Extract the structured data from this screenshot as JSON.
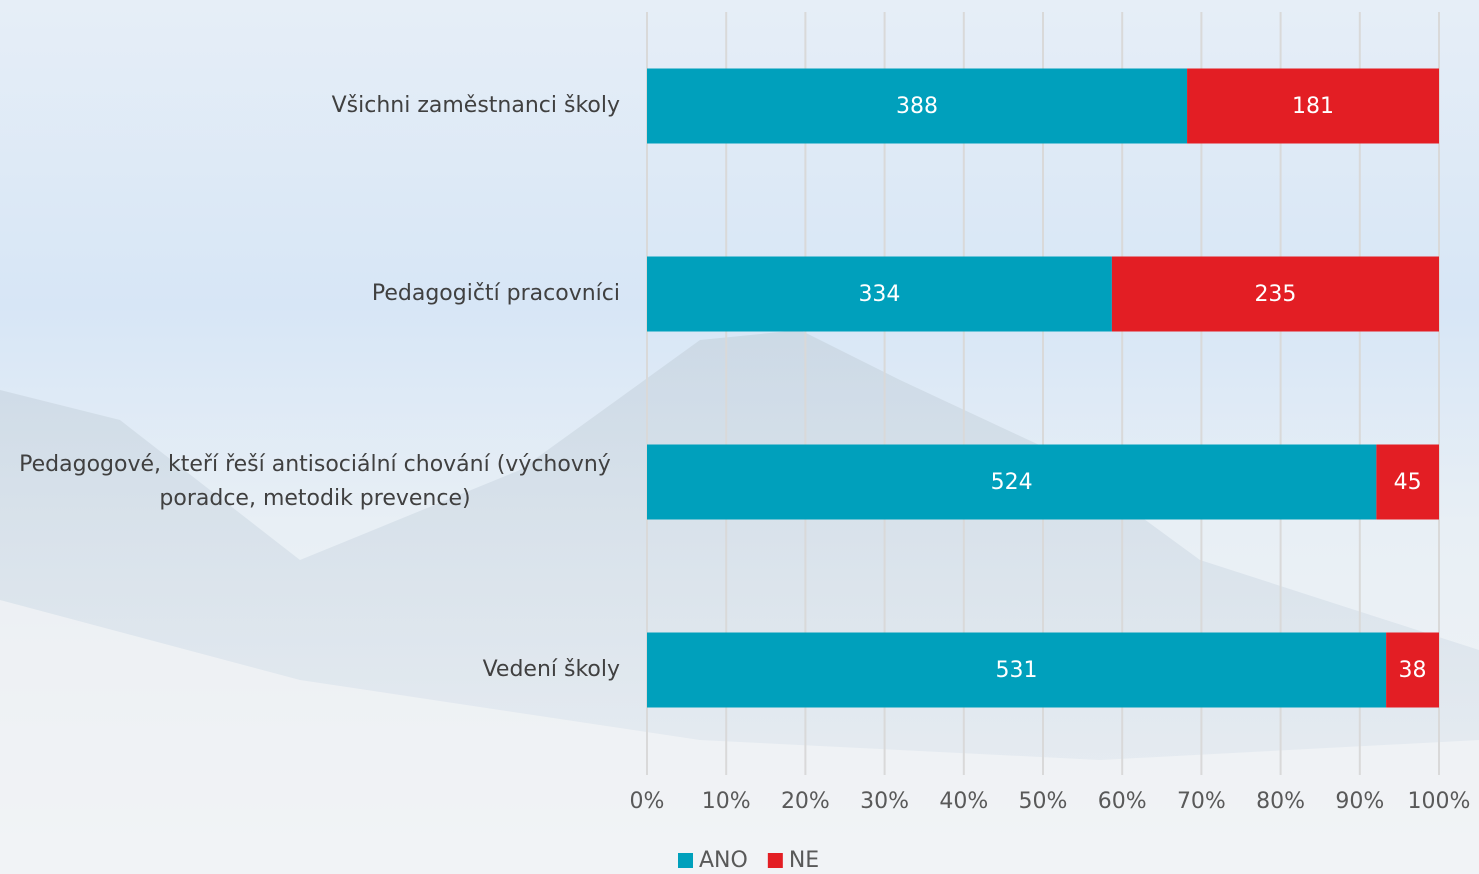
{
  "chart_data": {
    "type": "bar",
    "orientation": "horizontal",
    "stack": "percent",
    "categories": [
      "Všichni zaměstnanci školy",
      "Pedagogičtí pracovníci",
      "Pedagogové, kteří řeší antisociální chování (výchovný poradce, metodik prevence)",
      "Vedení školy"
    ],
    "series": [
      {
        "name": "ANO",
        "color": "#00a0bc",
        "values": [
          388,
          334,
          524,
          531
        ]
      },
      {
        "name": "NE",
        "color": "#e31e24",
        "values": [
          181,
          235,
          45,
          38
        ]
      }
    ],
    "xlim": [
      0,
      100
    ],
    "xticks": [
      {
        "value": 0,
        "label": "0%"
      },
      {
        "value": 10,
        "label": "10%"
      },
      {
        "value": 20,
        "label": "20%"
      },
      {
        "value": 30,
        "label": "30%"
      },
      {
        "value": 40,
        "label": "40%"
      },
      {
        "value": 50,
        "label": "50%"
      },
      {
        "value": 60,
        "label": "60%"
      },
      {
        "value": 70,
        "label": "70%"
      },
      {
        "value": 80,
        "label": "80%"
      },
      {
        "value": 90,
        "label": "90%"
      },
      {
        "value": 100,
        "label": "100%"
      }
    ],
    "grid": true,
    "legend": "bottom"
  }
}
